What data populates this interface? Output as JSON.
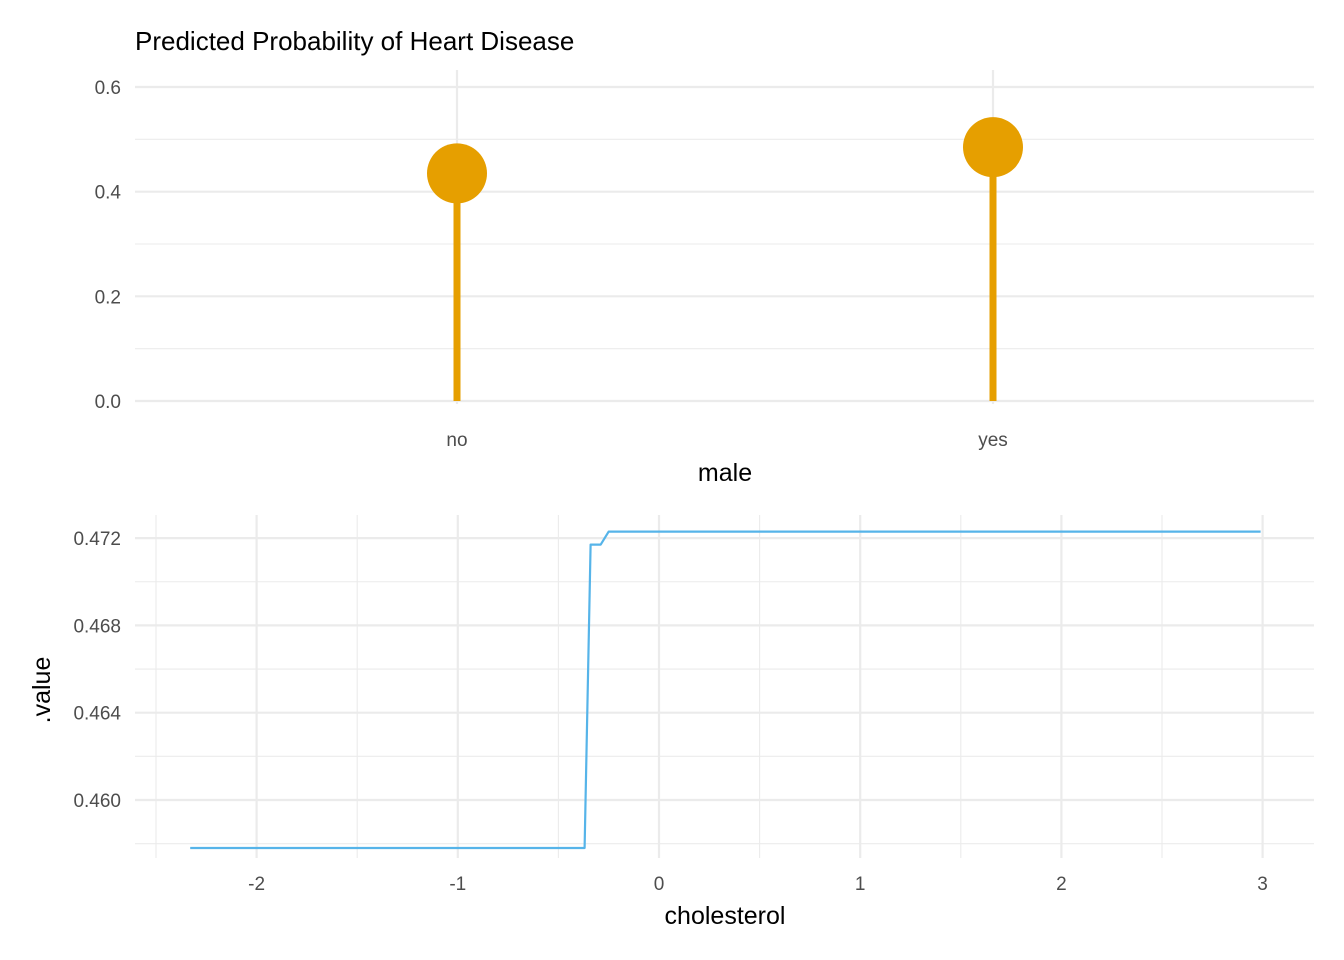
{
  "chart_data": [
    {
      "type": "lollipop",
      "title": "Predicted Probability of Heart Disease",
      "xlabel": "male",
      "ylabel": "",
      "categories": [
        "no",
        "yes"
      ],
      "values": [
        0.435,
        0.485
      ],
      "ylim": [
        0,
        0.6
      ],
      "yticks": [
        "0.0",
        "0.2",
        "0.4",
        "0.6"
      ],
      "color": "#E69F00",
      "grid": true
    },
    {
      "type": "line",
      "title": "",
      "xlabel": "cholesterol",
      "ylabel": ".value",
      "xlim": [
        -2.5,
        3.25
      ],
      "ylim": [
        0.4568,
        0.473
      ],
      "xticks": [
        "-2",
        "-1",
        "0",
        "1",
        "2",
        "3"
      ],
      "yticks": [
        "0.460",
        "0.464",
        "0.468",
        "0.472"
      ],
      "color": "#56B4E9",
      "grid": true,
      "series": [
        {
          "x": [
            -2.33,
            -0.37,
            -0.34,
            -0.29,
            -0.25,
            2.99
          ],
          "y": [
            0.4578,
            0.4578,
            0.4717,
            0.4717,
            0.4723,
            0.4723
          ]
        }
      ]
    }
  ]
}
